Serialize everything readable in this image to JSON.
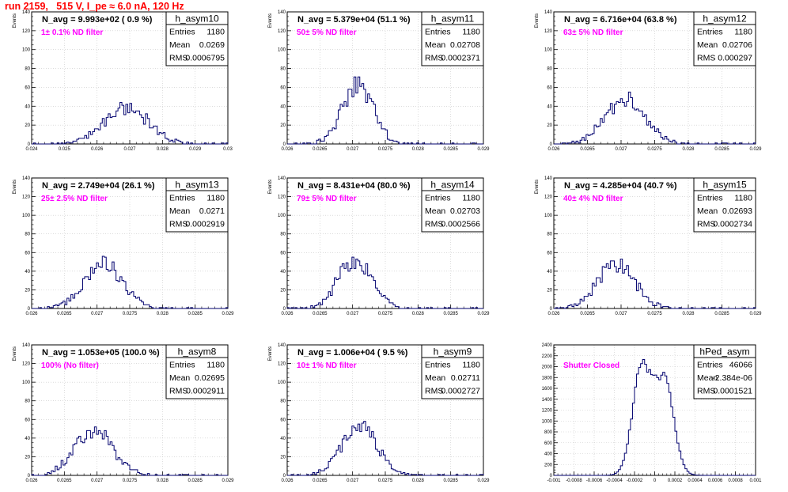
{
  "page": {
    "title": "run 2159,   515 V, I_pe ≈ 6.0 nA, 120 Hz"
  },
  "colors": {
    "title": "#ff0000",
    "histogram": "#00006e",
    "annotation": "#ff00ff",
    "grid": "#c8c8c8"
  },
  "chart_data": [
    {
      "type": "histogram",
      "title": "h_asym10",
      "stats": {
        "entries_label": "Entries",
        "entries": "1180",
        "mean_label": "Mean",
        "mean": "0.0269",
        "rms_label": "RMS",
        "rms": "0.0006795"
      },
      "navg": "N_avg = 9.993e+02 ( 0.9 %)",
      "annotation": "1± 0.1% ND filter",
      "ylabel": "Events",
      "xlabel": "",
      "xlim": [
        0.024,
        0.03
      ],
      "ylim": [
        0,
        140
      ],
      "xticks": [
        "0.024",
        "0.025",
        "0.026",
        "0.027",
        "0.028",
        "0.029",
        "0.03"
      ],
      "yticks": [
        "0",
        "20",
        "40",
        "60",
        "80",
        "100",
        "120",
        "140"
      ],
      "profile": {
        "mean": 0.0269,
        "sigma": 0.00068,
        "peak": 38
      }
    },
    {
      "type": "histogram",
      "title": "h_asym11",
      "stats": {
        "entries_label": "Entries",
        "entries": "1180",
        "mean_label": "Mean",
        "mean": "0.02708",
        "rms_label": "RMS",
        "rms": "0.0002371"
      },
      "navg": "N_avg = 5.379e+04 (51.1 %)",
      "annotation": "50± 5% ND filter",
      "ylabel": "Events",
      "xlabel": "",
      "xlim": [
        0.026,
        0.029
      ],
      "ylim": [
        0,
        140
      ],
      "xticks": [
        "0.026",
        "0.0265",
        "0.027",
        "0.0275",
        "0.028",
        "0.0285",
        "0.029"
      ],
      "yticks": [
        "0",
        "20",
        "40",
        "60",
        "80",
        "100",
        "120",
        "140"
      ],
      "profile": {
        "mean": 0.02708,
        "sigma": 0.000237,
        "peak": 62
      }
    },
    {
      "type": "histogram",
      "title": "h_asym12",
      "stats": {
        "entries_label": "Entries",
        "entries": "1180",
        "mean_label": "Mean",
        "mean": "0.02706",
        "rms_label": "RMS",
        "rms": "0.000297"
      },
      "navg": "N_avg = 6.716e+04 (63.8 %)",
      "annotation": "63± 5% ND filter",
      "ylabel": "Events",
      "xlabel": "",
      "xlim": [
        0.026,
        0.029
      ],
      "ylim": [
        0,
        140
      ],
      "xticks": [
        "0.026",
        "0.0265",
        "0.027",
        "0.0275",
        "0.028",
        "0.0285",
        "0.029"
      ],
      "yticks": [
        "0",
        "20",
        "40",
        "60",
        "80",
        "100",
        "120",
        "140"
      ],
      "profile": {
        "mean": 0.02706,
        "sigma": 0.000297,
        "peak": 48
      }
    },
    {
      "type": "histogram",
      "title": "h_asym13",
      "stats": {
        "entries_label": "Entries",
        "entries": "1180",
        "mean_label": "Mean",
        "mean": "0.0271",
        "rms_label": "RMS",
        "rms": "0.0002919"
      },
      "navg": "N_avg = 2.749e+04 (26.1 %)",
      "annotation": "25± 2.5% ND filter",
      "ylabel": "Events",
      "xlabel": "",
      "xlim": [
        0.026,
        0.029
      ],
      "ylim": [
        0,
        140
      ],
      "xticks": [
        "0.026",
        "0.0265",
        "0.027",
        "0.0275",
        "0.028",
        "0.0285",
        "0.029"
      ],
      "yticks": [
        "0",
        "20",
        "40",
        "60",
        "80",
        "100",
        "120",
        "140"
      ],
      "profile": {
        "mean": 0.0271,
        "sigma": 0.000292,
        "peak": 47
      }
    },
    {
      "type": "histogram",
      "title": "h_asym14",
      "stats": {
        "entries_label": "Entries",
        "entries": "1180",
        "mean_label": "Mean",
        "mean": "0.02703",
        "rms_label": "RMS",
        "rms": "0.0002566"
      },
      "navg": "N_avg = 8.431e+04 (80.0 %)",
      "annotation": "79± 5% ND filter",
      "ylabel": "Events",
      "xlabel": "",
      "xlim": [
        0.026,
        0.029
      ],
      "ylim": [
        0,
        140
      ],
      "xticks": [
        "0.026",
        "0.0265",
        "0.027",
        "0.0275",
        "0.028",
        "0.0285",
        "0.029"
      ],
      "yticks": [
        "0",
        "20",
        "40",
        "60",
        "80",
        "100",
        "120",
        "140"
      ],
      "profile": {
        "mean": 0.02703,
        "sigma": 0.000257,
        "peak": 52
      }
    },
    {
      "type": "histogram",
      "title": "h_asym15",
      "stats": {
        "entries_label": "Entries",
        "entries": "1180",
        "mean_label": "Mean",
        "mean": "0.02693",
        "rms_label": "RMS",
        "rms": "0.0002734"
      },
      "navg": "N_avg = 4.285e+04 (40.7 %)",
      "annotation": "40± 4% ND filter",
      "ylabel": "Events",
      "xlabel": "",
      "xlim": [
        0.026,
        0.029
      ],
      "ylim": [
        0,
        140
      ],
      "xticks": [
        "0.026",
        "0.0265",
        "0.027",
        "0.0275",
        "0.028",
        "0.0285",
        "0.029"
      ],
      "yticks": [
        "0",
        "20",
        "40",
        "60",
        "80",
        "100",
        "120",
        "140"
      ],
      "profile": {
        "mean": 0.02693,
        "sigma": 0.000273,
        "peak": 48
      }
    },
    {
      "type": "histogram",
      "title": "h_asym8",
      "stats": {
        "entries_label": "Entries",
        "entries": "1180",
        "mean_label": "Mean",
        "mean": "0.02695",
        "rms_label": "RMS",
        "rms": "0.0002911"
      },
      "navg": "N_avg = 1.053e+05 (100.0 %)",
      "annotation": "100% (No filter)",
      "ylabel": "Events",
      "xlabel": "",
      "xlim": [
        0.026,
        0.029
      ],
      "ylim": [
        0,
        140
      ],
      "xticks": [
        "0.026",
        "0.0265",
        "0.027",
        "0.0275",
        "0.028",
        "0.0285",
        "0.029"
      ],
      "yticks": [
        "0",
        "20",
        "40",
        "60",
        "80",
        "100",
        "120",
        "140"
      ],
      "profile": {
        "mean": 0.02695,
        "sigma": 0.000291,
        "peak": 48
      }
    },
    {
      "type": "histogram",
      "title": "h_asym9",
      "stats": {
        "entries_label": "Entries",
        "entries": "1180",
        "mean_label": "Mean",
        "mean": "0.02711",
        "rms_label": "RMS",
        "rms": "0.0002727"
      },
      "navg": "N_avg = 1.006e+04 ( 9.5 %)",
      "annotation": "10± 1% ND filter",
      "ylabel": "Events",
      "xlabel": "",
      "xlim": [
        0.026,
        0.029
      ],
      "ylim": [
        0,
        140
      ],
      "xticks": [
        "0.026",
        "0.0265",
        "0.027",
        "0.0275",
        "0.028",
        "0.0285",
        "0.029"
      ],
      "yticks": [
        "0",
        "20",
        "40",
        "60",
        "80",
        "100",
        "120",
        "140"
      ],
      "profile": {
        "mean": 0.02711,
        "sigma": 0.000273,
        "peak": 52
      }
    },
    {
      "type": "histogram",
      "title": "hPed_asym",
      "stats": {
        "entries_label": "Entries",
        "entries": "46066",
        "mean_label": "Mean",
        "mean": "-2.384e-06",
        "rms_label": "RMS",
        "rms": "0.0001521"
      },
      "navg": "",
      "annotation": "Shutter Closed",
      "ylabel": "",
      "xlabel": "",
      "xlim": [
        -0.001,
        0.001
      ],
      "ylim": [
        0,
        2400
      ],
      "xticks": [
        "-0.001",
        "-0.0008",
        "-0.0006",
        "-0.0004",
        "-0.0002",
        "0",
        "0.0002",
        "0.0004",
        "0.0006",
        "0.0008",
        "0.001"
      ],
      "yticks": [
        "0",
        "200",
        "400",
        "600",
        "800",
        "1000",
        "1200",
        "1400",
        "1600",
        "1800",
        "2000",
        "2200",
        "2400"
      ],
      "profile": {
        "mean": 0.0,
        "sigma": 0.000152,
        "peak": 2100,
        "double_peak": [
          -0.00012,
          9e-05
        ]
      }
    }
  ]
}
